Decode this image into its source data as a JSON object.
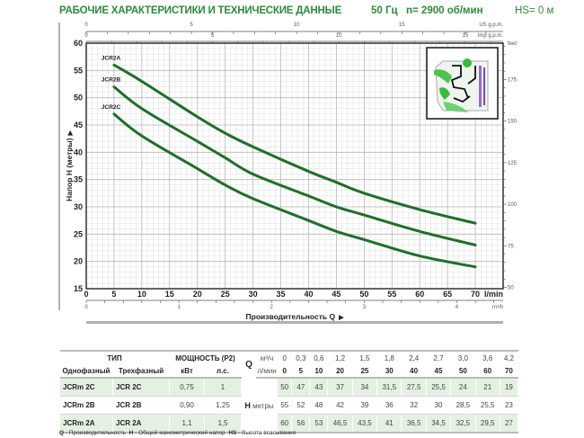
{
  "header": {
    "title": "РАБОЧИЕ ХАРАКТЕРИСТИКИ И ТЕХНИЧЕСКИЕ ДАННЫЕ",
    "frequency": "50 Гц",
    "speed": "n= 2900 об/мин",
    "suction": "HS= 0 м"
  },
  "colors": {
    "title": "#2f8a3a",
    "curve": "#1f6e2a",
    "row_highlight": "#e4f1e2"
  },
  "chart_data": {
    "type": "line",
    "xlabel": "Производительность Q",
    "ylabel": "Напор H (метры)",
    "x_unit": "l/min",
    "xlim": [
      0,
      75
    ],
    "ylim": [
      15,
      60
    ],
    "grid": true,
    "x_ticks": [
      0,
      5,
      10,
      15,
      20,
      25,
      30,
      35,
      40,
      45,
      50,
      55,
      60,
      65,
      70
    ],
    "y_ticks": [
      15,
      20,
      25,
      30,
      35,
      40,
      45,
      50,
      55,
      60
    ],
    "secondary_axes": {
      "top_us": {
        "label": "US g.p.m.",
        "ticks": [
          0,
          5,
          10,
          15
        ]
      },
      "top_imp": {
        "label": "Imp g.p.m.",
        "ticks": [
          0,
          5,
          10,
          15
        ]
      },
      "bottom_m3h": {
        "label": "m³/h",
        "ticks": [
          0,
          1,
          2,
          3,
          4
        ]
      },
      "right_feet": {
        "label": "feet",
        "ticks": [
          50,
          75,
          100,
          125,
          150,
          175
        ]
      }
    },
    "series": [
      {
        "name": "JCR2A",
        "x": [
          5,
          10,
          20,
          25,
          30,
          40,
          45,
          50,
          60,
          70
        ],
        "y": [
          56,
          53,
          46.5,
          43.5,
          41,
          36.5,
          34.5,
          32.5,
          29.5,
          27
        ]
      },
      {
        "name": "JCR2B",
        "x": [
          5,
          10,
          20,
          25,
          30,
          40,
          45,
          50,
          60,
          70
        ],
        "y": [
          52,
          48,
          42,
          39,
          36,
          32,
          30,
          28.5,
          25.5,
          23
        ]
      },
      {
        "name": "JCR2C",
        "x": [
          5,
          10,
          20,
          25,
          30,
          40,
          45,
          50,
          60,
          70
        ],
        "y": [
          47,
          43,
          37,
          34,
          31.5,
          27.5,
          25.5,
          24,
          21,
          19
        ]
      }
    ]
  },
  "table": {
    "type_header": "ТИП",
    "power_header": "МОЩНОСТЬ (P2)",
    "q_label": "Q",
    "q_unit_m3": "м³/ч",
    "q_unit_lmin": "л/мин",
    "single_phase": "Однофазный",
    "three_phase": "Трехфазный",
    "kw": "кВт",
    "hp": "л.с.",
    "h_label": "H",
    "h_unit": "метры",
    "q_m3": [
      "0",
      "0,3",
      "0,6",
      "1,2",
      "1,5",
      "1,8",
      "2,4",
      "2,7",
      "3,0",
      "3,6",
      "4,2"
    ],
    "q_lmin": [
      "0",
      "5",
      "10",
      "20",
      "25",
      "30",
      "40",
      "45",
      "50",
      "60",
      "70"
    ],
    "rows": [
      {
        "single": "JCRm 2C",
        "three": "JCR 2C",
        "kw": "0,75",
        "hp": "1",
        "h": [
          "50",
          "47",
          "43",
          "37",
          "34",
          "31,5",
          "27,5",
          "25,5",
          "24",
          "21",
          "19"
        ]
      },
      {
        "single": "JCRm 2B",
        "three": "JCR 2B",
        "kw": "0,90",
        "hp": "1,25",
        "h": [
          "55",
          "52",
          "48",
          "42",
          "39",
          "36",
          "32",
          "30",
          "28,5",
          "25,5",
          "23"
        ]
      },
      {
        "single": "JCRm 2A",
        "three": "JCR 2A",
        "kw": "1,1",
        "hp": "1,5",
        "h": [
          "60",
          "56",
          "53",
          "46,5",
          "43,5",
          "41",
          "36,5",
          "34,5",
          "32,5",
          "29,5",
          "27"
        ]
      }
    ]
  },
  "footnote": {
    "q_key": "Q",
    "q_text": " - Производительность",
    "h_key": "H",
    "h_text": " - Общий манометрический напор",
    "hs_key": "HS",
    "hs_text": " - Высота всасывания"
  }
}
